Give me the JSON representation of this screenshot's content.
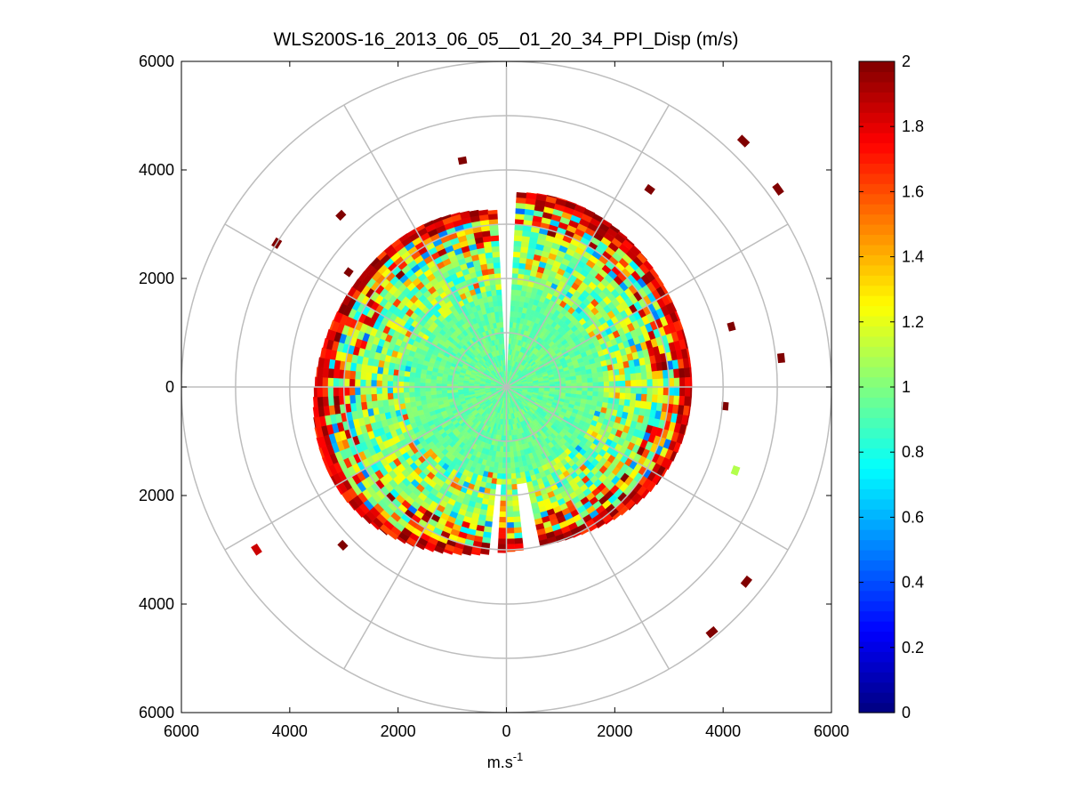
{
  "chart_data": {
    "type": "polar-ppi-heatmap",
    "title": "WLS200S-16_2013_06_05__01_20_34_PPI_Disp (m/s)",
    "xlabel": "m.s-1",
    "xlabel_base": "m.s",
    "xlabel_sup": "-1",
    "ylabel": "",
    "xlim": [
      -6000,
      6000
    ],
    "ylim": [
      -6000,
      6000
    ],
    "x_ticks": [
      {
        "value": -6000,
        "label": "6000"
      },
      {
        "value": -4000,
        "label": "4000"
      },
      {
        "value": -2000,
        "label": "2000"
      },
      {
        "value": 0,
        "label": "0"
      },
      {
        "value": 2000,
        "label": "2000"
      },
      {
        "value": 4000,
        "label": "4000"
      },
      {
        "value": 6000,
        "label": "6000"
      }
    ],
    "y_ticks": [
      {
        "value": 6000,
        "label": "6000"
      },
      {
        "value": 4000,
        "label": "4000"
      },
      {
        "value": 2000,
        "label": "2000"
      },
      {
        "value": 0,
        "label": "0"
      },
      {
        "value": -2000,
        "label": "2000"
      },
      {
        "value": -4000,
        "label": "4000"
      },
      {
        "value": -6000,
        "label": "6000"
      }
    ],
    "polar_grid": {
      "rings": [
        1000,
        2000,
        3000,
        4000,
        5000,
        6000
      ],
      "spoke_angles_deg": [
        0,
        30,
        60,
        90,
        120,
        150,
        180,
        210,
        240,
        270,
        300,
        330
      ]
    },
    "colorbar": {
      "colormap": "jet",
      "range": [
        0,
        2
      ],
      "ticks": [
        {
          "value": 0,
          "label": "0"
        },
        {
          "value": 0.2,
          "label": "0.2"
        },
        {
          "value": 0.4,
          "label": "0.4"
        },
        {
          "value": 0.6,
          "label": "0.6"
        },
        {
          "value": 0.8,
          "label": "0.8"
        },
        {
          "value": 1,
          "label": "1"
        },
        {
          "value": 1.2,
          "label": "1.2"
        },
        {
          "value": 1.4,
          "label": "1.4"
        },
        {
          "value": 1.6,
          "label": "1.6"
        },
        {
          "value": 1.8,
          "label": "1.8"
        },
        {
          "value": 2,
          "label": "2"
        }
      ]
    },
    "scan": {
      "range_min": 0,
      "range_max": 3600,
      "range_gate": 100,
      "azimuth_step_deg": 3,
      "core_mean_value": 0.95,
      "outer_value_range": [
        1.6,
        2.0
      ],
      "gaps_azimuth_deg": [
        {
          "from": 357,
          "to": 3,
          "range_from": 0,
          "range_to": 3700
        },
        {
          "from": 168,
          "to": 174,
          "range_from": 1850,
          "range_to": 3700
        },
        {
          "from": 182,
          "to": 186,
          "range_from": 1850,
          "range_to": 3700
        }
      ],
      "scattered_returns": [
        {
          "azimuth_deg": 349,
          "range": 4250,
          "value": 2.0
        },
        {
          "azimuth_deg": 36,
          "range": 4500,
          "value": 2.0
        },
        {
          "azimuth_deg": 44,
          "range": 6300,
          "value": 2.0
        },
        {
          "azimuth_deg": 54,
          "range": 6200,
          "value": 2.0
        },
        {
          "azimuth_deg": 302,
          "range": 5000,
          "value": 2.0
        },
        {
          "azimuth_deg": 306,
          "range": 3600,
          "value": 2.0
        },
        {
          "azimuth_deg": 316,
          "range": 4400,
          "value": 2.0
        },
        {
          "azimuth_deg": 75,
          "range": 4300,
          "value": 2.0
        },
        {
          "azimuth_deg": 84,
          "range": 5100,
          "value": 2.0
        },
        {
          "azimuth_deg": 110,
          "range": 4500,
          "value": 1.1
        },
        {
          "azimuth_deg": 237,
          "range": 5500,
          "value": 1.85
        },
        {
          "azimuth_deg": 226,
          "range": 4200,
          "value": 2.0
        },
        {
          "azimuth_deg": 129,
          "range": 5700,
          "value": 2.0
        },
        {
          "azimuth_deg": 140,
          "range": 5900,
          "value": 2.0
        },
        {
          "azimuth_deg": 95,
          "range": 4050,
          "value": 2.0
        }
      ]
    }
  }
}
